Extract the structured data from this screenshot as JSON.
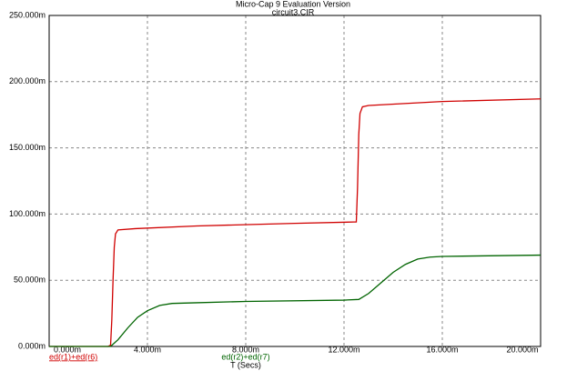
{
  "chart_data": {
    "type": "line",
    "title": "Micro-Cap 9 Evaluation Version",
    "subtitle": "circuit3.CIR",
    "x_label": "T (Secs)",
    "xlim": [
      0,
      20
    ],
    "xticks": [
      {
        "value": 0,
        "label": "0.000m"
      },
      {
        "value": 4,
        "label": "4.000m"
      },
      {
        "value": 8,
        "label": "8.000m"
      },
      {
        "value": 12,
        "label": "12.000m"
      },
      {
        "value": 16,
        "label": "16.000m"
      },
      {
        "value": 20,
        "label": "20.000m"
      }
    ],
    "ylim": [
      0,
      250
    ],
    "yticks": [
      {
        "value": 0,
        "label": "0.000m"
      },
      {
        "value": 50,
        "label": "50.000m"
      },
      {
        "value": 100,
        "label": "100.000m"
      },
      {
        "value": 150,
        "label": "150.000m"
      },
      {
        "value": 200,
        "label": "200.000m"
      },
      {
        "value": 250,
        "label": "250.000m"
      }
    ],
    "grid": true,
    "series": [
      {
        "name": "ed(r1)+ed(r6)",
        "color": "#d00000",
        "x": [
          0,
          2.4,
          2.5,
          2.55,
          2.6,
          2.65,
          2.7,
          2.8,
          3.5,
          6,
          10,
          12.4,
          12.5,
          12.55,
          12.6,
          12.65,
          12.75,
          13,
          16,
          20
        ],
        "values": [
          0,
          0,
          1,
          20,
          50,
          75,
          85,
          88,
          89,
          91,
          93,
          94,
          94,
          120,
          160,
          176,
          181,
          182,
          185,
          187
        ]
      },
      {
        "name": "ed(r2)+ed(r7)",
        "color": "#006400",
        "x": [
          0,
          2.5,
          2.8,
          3.2,
          3.6,
          4,
          4.5,
          5,
          6,
          8,
          12,
          12.6,
          13,
          13.5,
          14,
          14.5,
          15,
          15.5,
          16,
          20
        ],
        "values": [
          0,
          0,
          5,
          14,
          22,
          27,
          31,
          32.5,
          33,
          34,
          35,
          35.5,
          40,
          48,
          56,
          62,
          66,
          67.5,
          68,
          69
        ]
      }
    ]
  }
}
